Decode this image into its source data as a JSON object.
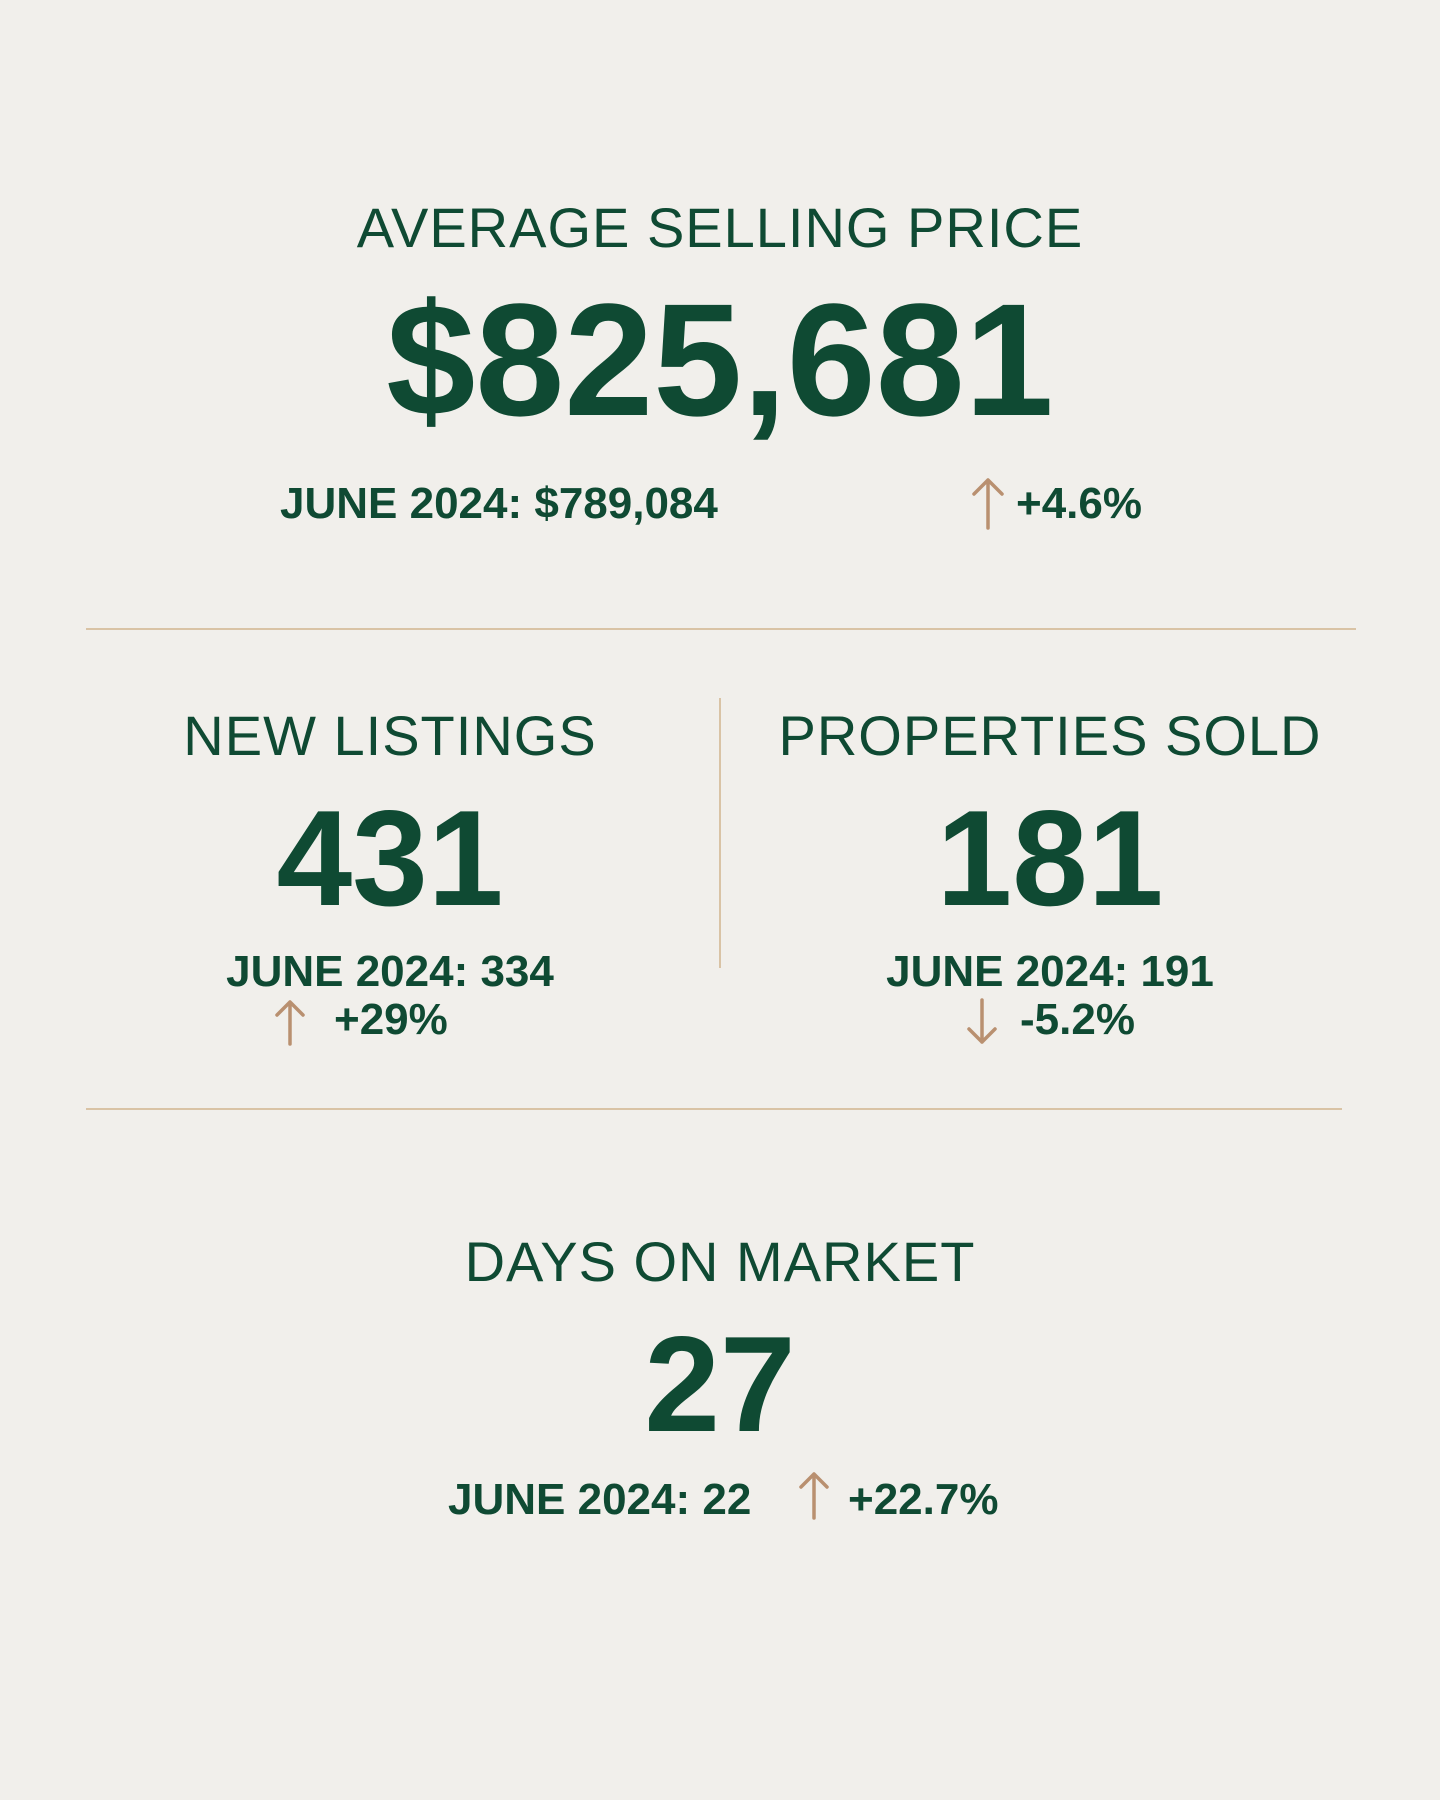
{
  "accent_color": "#0f4a33",
  "arrow_color": "#b99070",
  "divider_color": "#d9c3a5",
  "background_color": "#f1efeb",
  "average_selling_price": {
    "label": "AVERAGE SELLING PRICE",
    "value": "$825,681",
    "comparison": "JUNE 2024: $789,084",
    "trend_icon": "arrow-up-icon",
    "change": "+4.6%"
  },
  "new_listings": {
    "label": "NEW LISTINGS",
    "value": "431",
    "comparison": "JUNE 2024: 334",
    "trend_icon": "arrow-up-icon",
    "change": "+29%"
  },
  "properties_sold": {
    "label": "PROPERTIES SOLD",
    "value": "181",
    "comparison": "JUNE 2024: 191",
    "trend_icon": "arrow-down-icon",
    "change": "-5.2%"
  },
  "days_on_market": {
    "label": "DAYS ON MARKET",
    "value": "27",
    "comparison": "JUNE 2024: 22",
    "trend_icon": "arrow-up-icon",
    "change": "+22.7%"
  }
}
